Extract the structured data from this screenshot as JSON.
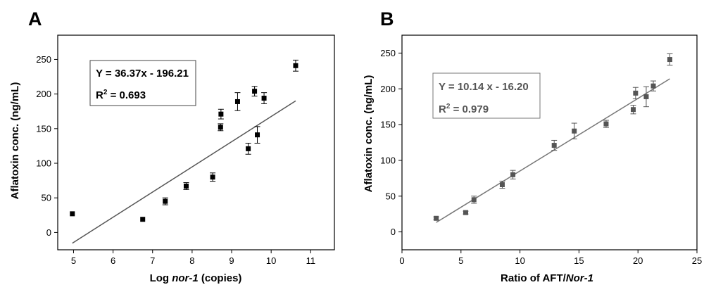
{
  "chart_data": [
    {
      "type": "scatter",
      "panel_label": "A",
      "xlabel_parts": [
        "Log ",
        "nor-1",
        " (copies)"
      ],
      "ylabel": "Aflatoxin conc. (ng/mL)",
      "xlim": [
        4.6,
        11.6
      ],
      "ylim": [
        -25,
        285
      ],
      "x_ticks": [
        5,
        6,
        7,
        8,
        9,
        10,
        11
      ],
      "y_ticks": [
        0,
        50,
        100,
        150,
        200,
        250
      ],
      "grid": false,
      "marker_color": "#000000",
      "line_color": "#555555",
      "points": [
        {
          "x": 4.97,
          "y": 27,
          "err": 0
        },
        {
          "x": 6.75,
          "y": 19,
          "err": 0
        },
        {
          "x": 7.32,
          "y": 45,
          "err": 5
        },
        {
          "x": 7.85,
          "y": 67,
          "err": 5
        },
        {
          "x": 8.52,
          "y": 80,
          "err": 6
        },
        {
          "x": 8.72,
          "y": 152,
          "err": 5
        },
        {
          "x": 8.73,
          "y": 171,
          "err": 7
        },
        {
          "x": 9.15,
          "y": 189,
          "err": 13
        },
        {
          "x": 9.42,
          "y": 121,
          "err": 8
        },
        {
          "x": 9.58,
          "y": 204,
          "err": 7
        },
        {
          "x": 9.65,
          "y": 141,
          "err": 12
        },
        {
          "x": 9.82,
          "y": 194,
          "err": 8
        },
        {
          "x": 10.62,
          "y": 241,
          "err": 8
        }
      ],
      "fit": {
        "slope": 36.37,
        "intercept": -196.21,
        "x_range": [
          4.97,
          10.62
        ]
      },
      "equation_text": "Y = 36.37x - 196.21",
      "r2_prefix": "R",
      "r2_exp": "2",
      "r2_value": " = 0.693"
    },
    {
      "type": "scatter",
      "panel_label": "B",
      "xlabel_parts": [
        "Ratio of AFT/",
        "Nor-1",
        ""
      ],
      "ylabel": "Aflatoxin conc. (ng/mL)",
      "xlim": [
        0,
        25
      ],
      "ylim": [
        -25,
        275
      ],
      "x_ticks": [
        0,
        5,
        10,
        15,
        20,
        25
      ],
      "y_ticks": [
        0,
        50,
        100,
        150,
        200,
        250
      ],
      "grid": false,
      "marker_color": "#555555",
      "line_color": "#777777",
      "points": [
        {
          "x": 2.9,
          "y": 19,
          "err": 2
        },
        {
          "x": 5.4,
          "y": 27,
          "err": 2
        },
        {
          "x": 6.1,
          "y": 45,
          "err": 5
        },
        {
          "x": 8.5,
          "y": 66,
          "err": 5
        },
        {
          "x": 9.4,
          "y": 80,
          "err": 6
        },
        {
          "x": 12.9,
          "y": 121,
          "err": 7
        },
        {
          "x": 14.6,
          "y": 141,
          "err": 11
        },
        {
          "x": 17.3,
          "y": 151,
          "err": 5
        },
        {
          "x": 19.6,
          "y": 171,
          "err": 6
        },
        {
          "x": 19.8,
          "y": 194,
          "err": 8
        },
        {
          "x": 20.7,
          "y": 189,
          "err": 14
        },
        {
          "x": 21.3,
          "y": 204,
          "err": 7
        },
        {
          "x": 22.7,
          "y": 241,
          "err": 8
        }
      ],
      "fit": {
        "slope": 10.14,
        "intercept": -16.2,
        "x_range": [
          2.9,
          22.7
        ]
      },
      "equation_text": "Y = 10.14 x - 16.20",
      "r2_prefix": "R",
      "r2_exp": "2",
      "r2_value": " = 0.979"
    }
  ]
}
